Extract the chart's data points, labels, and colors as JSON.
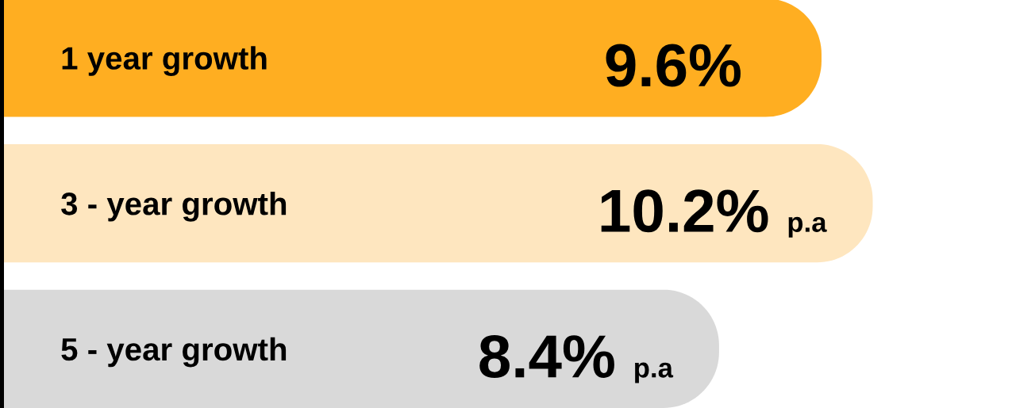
{
  "chart_data": {
    "type": "bar",
    "orientation": "horizontal",
    "categories": [
      "1 year growth",
      "3 - year growth",
      "5 - year growth"
    ],
    "values": [
      9.6,
      10.2,
      8.4
    ],
    "value_labels": [
      "9.6%",
      "10.2% p.a",
      "8.4% p.a"
    ],
    "colors": [
      "#ffae21",
      "#fee6bf",
      "#d9d9d9"
    ],
    "tick_labels": "y",
    "grid": false,
    "legend": false
  }
}
